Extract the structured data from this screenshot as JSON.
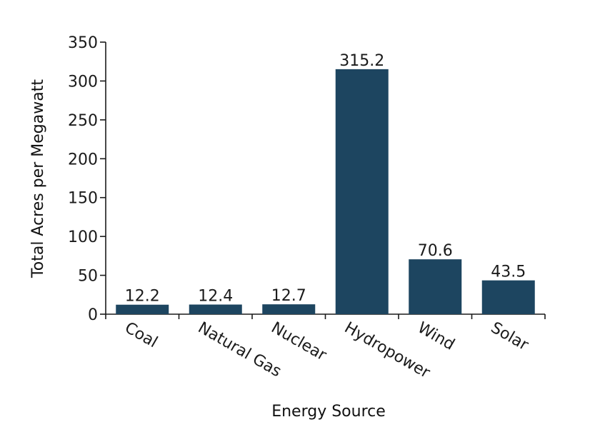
{
  "chart_data": {
    "type": "bar",
    "title": "",
    "xlabel": "Energy Source",
    "ylabel": "Total Acres per Megawatt",
    "categories": [
      "Coal",
      "Natural Gas",
      "Nuclear",
      "Hydropower",
      "Wind",
      "Solar"
    ],
    "values": [
      12.2,
      12.4,
      12.7,
      315.2,
      70.6,
      43.5
    ],
    "value_labels": [
      "12.2",
      "12.4",
      "12.7",
      "315.2",
      "70.6",
      "43.5"
    ],
    "ylim": [
      0,
      350
    ],
    "yticks": [
      0,
      50,
      100,
      150,
      200,
      250,
      300,
      350
    ],
    "grid": false,
    "bar_color": "#1d4560"
  }
}
